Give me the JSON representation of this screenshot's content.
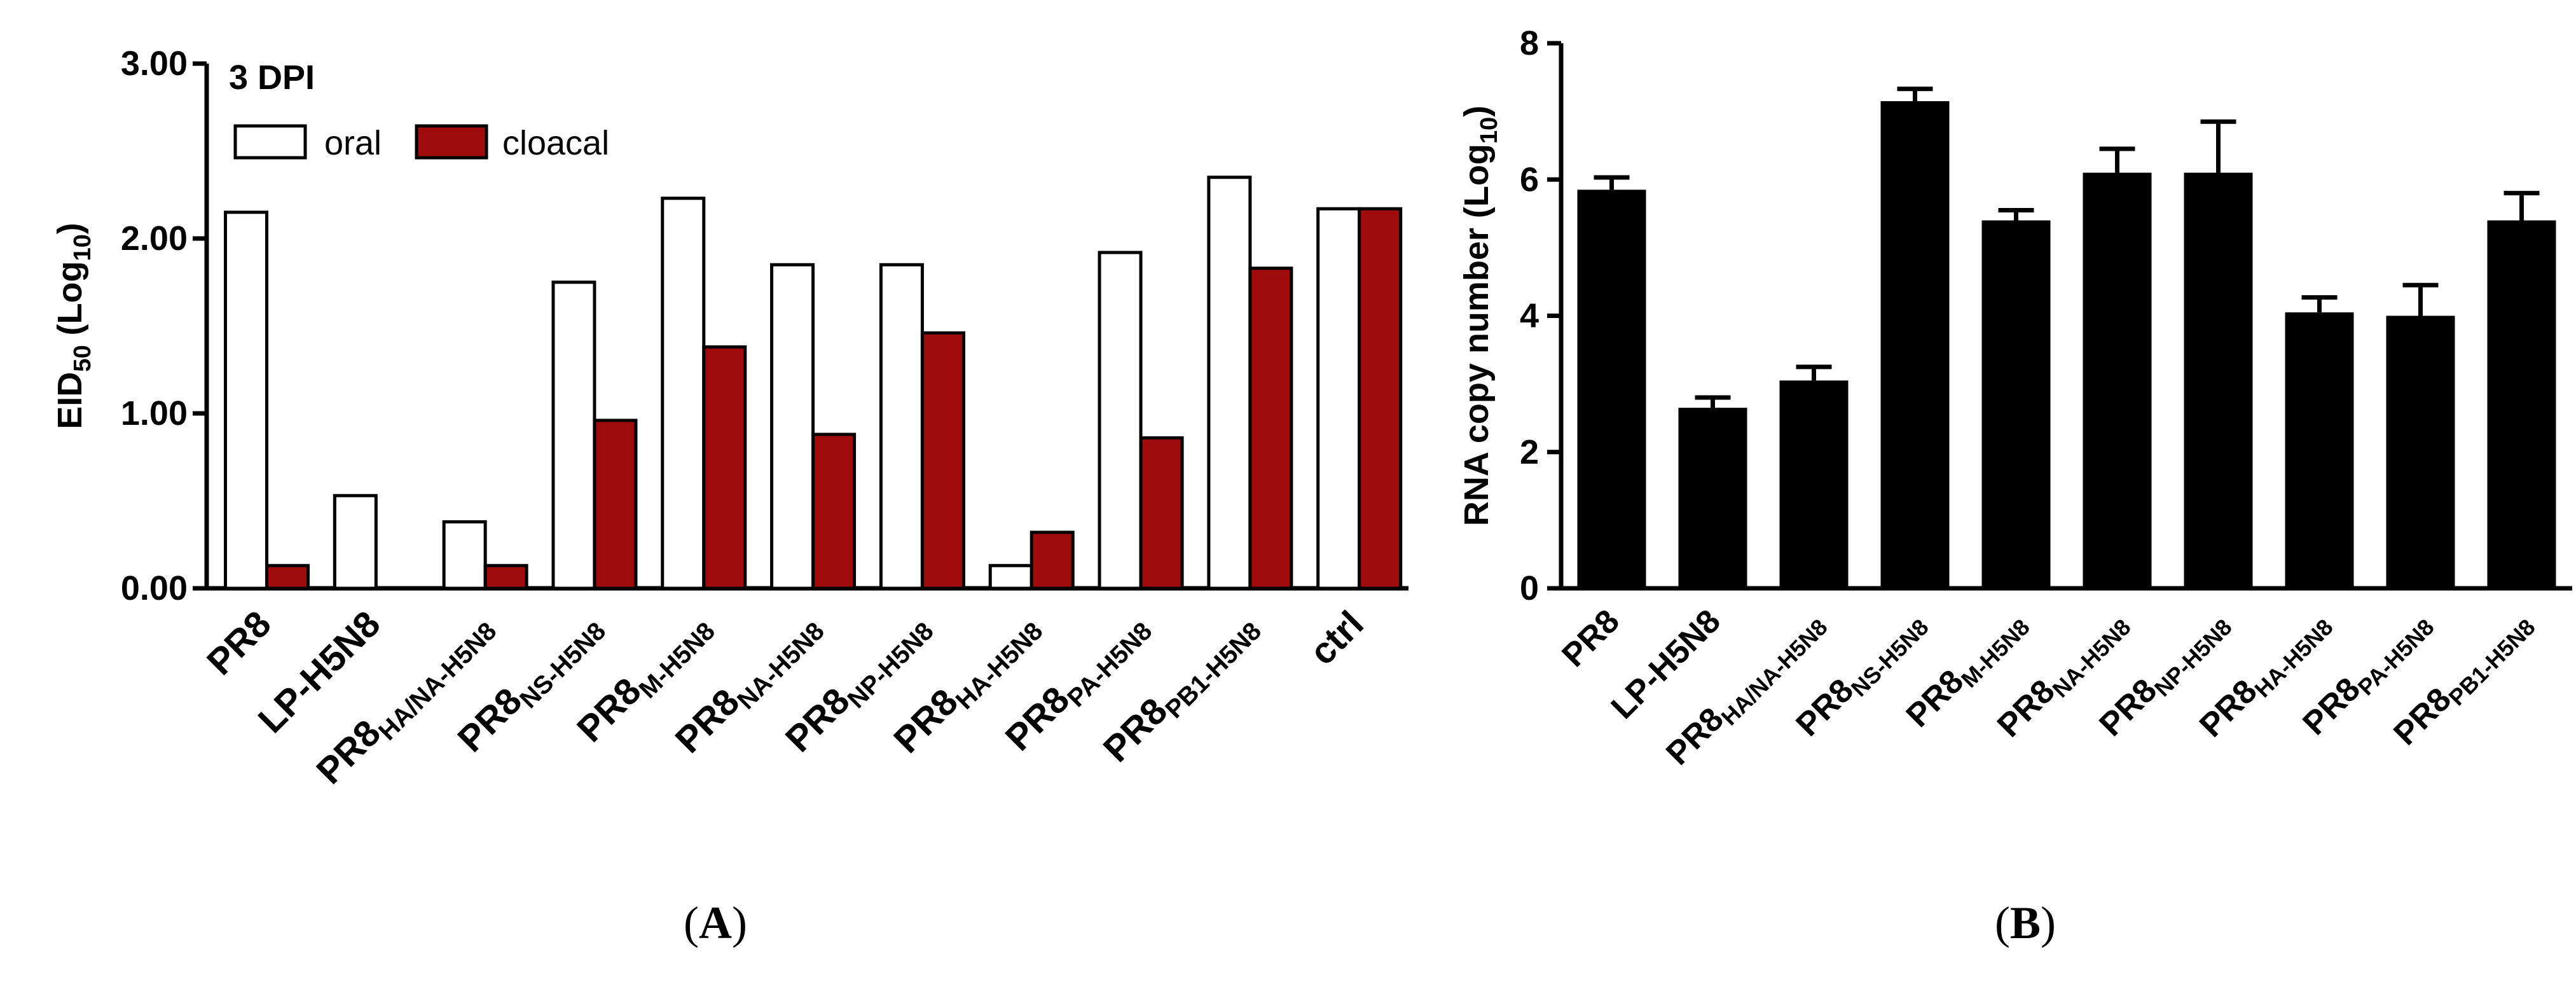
{
  "panels": {
    "a": {
      "letter": "A",
      "open": "(",
      "close": ")"
    },
    "b": {
      "letter": "B",
      "open": "(",
      "close": ")"
    }
  },
  "chart_data": [
    {
      "type": "bar",
      "panel": "A",
      "title": "3 DPI",
      "ylabel_main": "EID",
      "ylabel_sub": "50",
      "ylabel_rest": " (Log",
      "ylabel_sub2": "10",
      "ylabel_end": ")",
      "ylim": [
        0,
        3
      ],
      "yticks": [
        0,
        1,
        2,
        3
      ],
      "ytick_labels": [
        "0.00",
        "1.00",
        "2.00",
        "3.00"
      ],
      "legend_position": "top-left",
      "categories": [
        {
          "main": "PR8",
          "sub": ""
        },
        {
          "main": "LP-H5N8",
          "sub": ""
        },
        {
          "main": "PR8",
          "sub": "HA/NA-H5N8"
        },
        {
          "main": "PR8",
          "sub": "NS-H5N8"
        },
        {
          "main": "PR8",
          "sub": "M-H5N8"
        },
        {
          "main": "PR8",
          "sub": "NA-H5N8"
        },
        {
          "main": "PR8",
          "sub": "NP-H5N8"
        },
        {
          "main": "PR8",
          "sub": "HA-H5N8"
        },
        {
          "main": "PR8",
          "sub": "PA-H5N8"
        },
        {
          "main": "PR8",
          "sub": "PB1-H5N8"
        },
        {
          "main": "ctrl",
          "sub": ""
        }
      ],
      "series": [
        {
          "name": "oral",
          "color": "#ffffff",
          "values": [
            2.15,
            0.53,
            0.38,
            1.75,
            2.23,
            1.85,
            1.85,
            0.13,
            1.92,
            2.35,
            2.17
          ]
        },
        {
          "name": "cloacal",
          "color": "#a00c0c",
          "values": [
            0.13,
            0,
            0.13,
            0.96,
            1.38,
            0.88,
            1.46,
            0.32,
            0.86,
            1.83,
            2.17
          ]
        }
      ]
    },
    {
      "type": "bar",
      "panel": "B",
      "ylabel": "RNA copy number (Log",
      "ylabel_sub": "10",
      "ylabel_end": ")",
      "ylim": [
        0,
        8
      ],
      "yticks": [
        0,
        2,
        4,
        6,
        8
      ],
      "ytick_labels": [
        "0",
        "2",
        "4",
        "6",
        "8"
      ],
      "categories": [
        {
          "main": "PR8",
          "sub": ""
        },
        {
          "main": "LP-H5N8",
          "sub": ""
        },
        {
          "main": "PR8",
          "sub": "HA/NA-H5N8"
        },
        {
          "main": "PR8",
          "sub": "NS-H5N8"
        },
        {
          "main": "PR8",
          "sub": "M-H5N8"
        },
        {
          "main": "PR8",
          "sub": "NA-H5N8"
        },
        {
          "main": "PR8",
          "sub": "NP-H5N8"
        },
        {
          "main": "PR8",
          "sub": "HA-H5N8"
        },
        {
          "main": "PR8",
          "sub": "PA-H5N8"
        },
        {
          "main": "PR8",
          "sub": "PB1-H5N8"
        }
      ],
      "series": [
        {
          "name": "RNA copy number",
          "color": "#000000",
          "values": [
            5.85,
            2.65,
            3.05,
            7.15,
            5.4,
            6.1,
            6.1,
            4.05,
            4.0,
            5.4
          ],
          "errors": [
            0.18,
            0.15,
            0.2,
            0.18,
            0.15,
            0.35,
            0.75,
            0.22,
            0.45,
            0.4
          ]
        }
      ]
    }
  ]
}
